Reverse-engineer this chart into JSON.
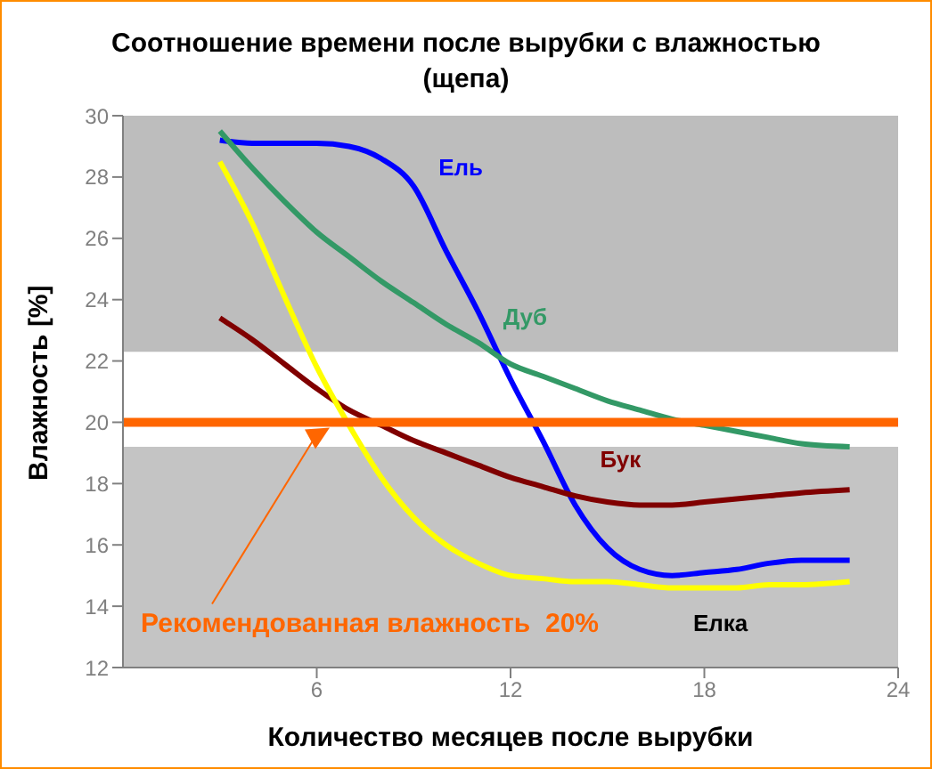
{
  "chart_data": {
    "type": "line",
    "title": "Соотношение времени после вырубки с влажностью (щепа)",
    "xlabel": "Количество месяцев после вырубки",
    "ylabel": "Влажность [%]",
    "x": [
      3,
      4,
      5,
      6,
      7,
      8,
      9,
      10,
      11,
      12,
      13,
      14,
      15,
      16,
      17,
      18,
      19,
      20,
      21,
      22.5
    ],
    "series": [
      {
        "name": "Ель",
        "color": "#0000ff",
        "values": [
          29.2,
          29.1,
          29.1,
          29.1,
          29.0,
          28.6,
          27.7,
          25.6,
          23.6,
          21.4,
          19.4,
          17.3,
          15.9,
          15.2,
          15.0,
          15.1,
          15.2,
          15.4,
          15.5,
          15.5
        ]
      },
      {
        "name": "Дуб",
        "color": "#339966",
        "values": [
          29.5,
          28.3,
          27.2,
          26.2,
          25.4,
          24.6,
          23.9,
          23.2,
          22.6,
          21.9,
          21.5,
          21.1,
          20.7,
          20.4,
          20.1,
          19.9,
          19.7,
          19.5,
          19.3,
          19.2
        ]
      },
      {
        "name": "Бук",
        "color": "#800000",
        "values": [
          23.4,
          22.7,
          21.9,
          21.1,
          20.4,
          19.9,
          19.4,
          19.0,
          18.6,
          18.2,
          17.9,
          17.6,
          17.4,
          17.3,
          17.3,
          17.4,
          17.5,
          17.6,
          17.7,
          17.8
        ]
      },
      {
        "name": "Елка",
        "color": "#ffff00",
        "values": [
          28.5,
          26.5,
          24.1,
          21.8,
          19.9,
          18.2,
          16.9,
          16.0,
          15.4,
          15.0,
          14.9,
          14.8,
          14.8,
          14.7,
          14.6,
          14.6,
          14.6,
          14.7,
          14.7,
          14.8
        ]
      }
    ],
    "xlim": [
      0,
      24
    ],
    "xticks": [
      6,
      12,
      18,
      24
    ],
    "ylim": [
      12,
      30
    ],
    "yticks": [
      12,
      14,
      16,
      18,
      20,
      22,
      24,
      26,
      28,
      30
    ],
    "ref_lines": [
      {
        "axis": "y",
        "value": 20,
        "label": "Рекомендованная влажность  20%",
        "color": "#ff6600"
      }
    ],
    "bands": [
      {
        "axis": "y",
        "from": 22.3,
        "to": 30,
        "color": "#bdbdbd"
      },
      {
        "axis": "y",
        "from": 12,
        "to": 19.2,
        "color": "#c4c4c4"
      }
    ],
    "marker": "none",
    "line_style": "solid"
  }
}
